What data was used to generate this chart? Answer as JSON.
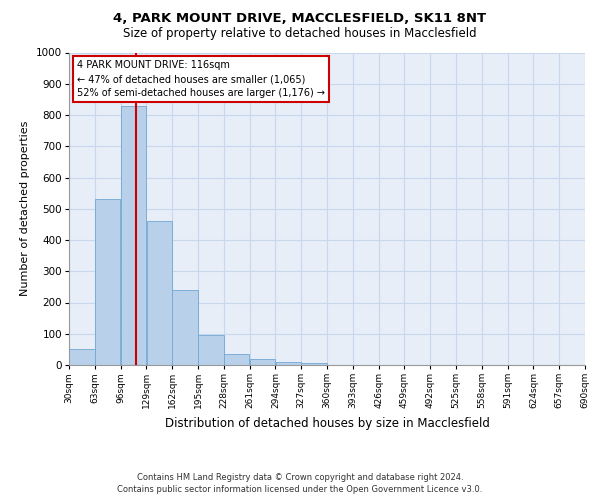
{
  "title_line1": "4, PARK MOUNT DRIVE, MACCLESFIELD, SK11 8NT",
  "title_line2": "Size of property relative to detached houses in Macclesfield",
  "xlabel": "Distribution of detached houses by size in Macclesfield",
  "ylabel": "Number of detached properties",
  "footnote1": "Contains HM Land Registry data © Crown copyright and database right 2024.",
  "footnote2": "Contains public sector information licensed under the Open Government Licence v3.0.",
  "bar_values": [
    50,
    530,
    830,
    460,
    240,
    97,
    35,
    20,
    10,
    5,
    0,
    0,
    0,
    0,
    0,
    0,
    0,
    0,
    0,
    0
  ],
  "bin_edges": [
    30,
    63,
    96,
    129,
    162,
    195,
    228,
    261,
    294,
    327,
    360,
    393,
    426,
    459,
    492,
    525,
    558,
    591,
    624,
    657,
    690
  ],
  "tick_labels": [
    "30sqm",
    "63sqm",
    "96sqm",
    "129sqm",
    "162sqm",
    "195sqm",
    "228sqm",
    "261sqm",
    "294sqm",
    "327sqm",
    "360sqm",
    "393sqm",
    "426sqm",
    "459sqm",
    "492sqm",
    "525sqm",
    "558sqm",
    "591sqm",
    "624sqm",
    "657sqm",
    "690sqm"
  ],
  "bar_color": "#b8d0ea",
  "bar_edgecolor": "#6fa8d4",
  "vline_x": 116,
  "vline_color": "#cc0000",
  "annotation_text": "4 PARK MOUNT DRIVE: 116sqm\n← 47% of detached houses are smaller (1,065)\n52% of semi-detached houses are larger (1,176) →",
  "annotation_box_color": "#ffffff",
  "annotation_box_edgecolor": "#cc0000",
  "ylim": [
    0,
    1000
  ],
  "yticks": [
    0,
    100,
    200,
    300,
    400,
    500,
    600,
    700,
    800,
    900,
    1000
  ],
  "grid_color": "#c8d8ec",
  "bg_color": "#e8eef8",
  "title1_fontsize": 9.5,
  "title2_fontsize": 8.5,
  "ylabel_fontsize": 8,
  "xlabel_fontsize": 8.5,
  "tick_fontsize": 6.5,
  "ytick_fontsize": 7.5,
  "annot_fontsize": 7,
  "footnote_fontsize": 6
}
